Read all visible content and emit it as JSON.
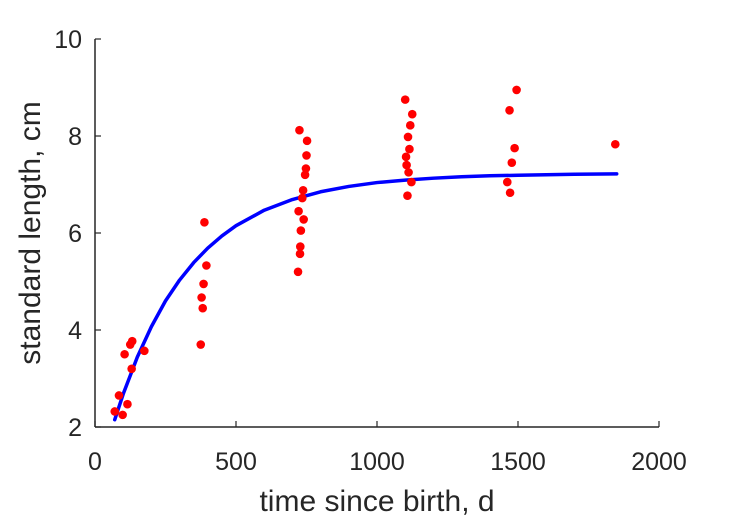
{
  "chart_data": {
    "type": "scatter",
    "title": "",
    "xlabel": "time since birth, d",
    "ylabel": "standard length, cm",
    "xlim": [
      0,
      2000
    ],
    "ylim": [
      2,
      10
    ],
    "xticks": [
      0,
      500,
      1000,
      1500,
      2000
    ],
    "yticks": [
      2,
      4,
      6,
      8,
      10
    ],
    "grid": false,
    "legend": "none",
    "colors": {
      "data": "#ff0000",
      "fit": "#0000ff",
      "axis": "#262626"
    },
    "series": [
      {
        "type": "scatter",
        "points": [
          [
            70,
            2.32
          ],
          [
            85,
            2.65
          ],
          [
            98,
            2.25
          ],
          [
            105,
            3.5
          ],
          [
            115,
            2.47
          ],
          [
            125,
            3.7
          ],
          [
            130,
            3.2
          ],
          [
            132,
            3.77
          ],
          [
            175,
            3.57
          ],
          [
            375,
            3.7
          ],
          [
            378,
            4.67
          ],
          [
            382,
            4.45
          ],
          [
            385,
            4.95
          ],
          [
            388,
            6.22
          ],
          [
            395,
            5.33
          ],
          [
            720,
            5.2
          ],
          [
            722,
            6.45
          ],
          [
            725,
            8.12
          ],
          [
            727,
            5.57
          ],
          [
            728,
            5.72
          ],
          [
            730,
            6.05
          ],
          [
            735,
            6.72
          ],
          [
            738,
            6.88
          ],
          [
            740,
            6.28
          ],
          [
            745,
            7.2
          ],
          [
            748,
            7.33
          ],
          [
            750,
            7.6
          ],
          [
            752,
            7.9
          ],
          [
            1100,
            8.75
          ],
          [
            1103,
            7.57
          ],
          [
            1105,
            7.4
          ],
          [
            1108,
            6.77
          ],
          [
            1110,
            7.98
          ],
          [
            1112,
            7.25
          ],
          [
            1115,
            7.73
          ],
          [
            1118,
            8.22
          ],
          [
            1122,
            7.05
          ],
          [
            1125,
            8.45
          ],
          [
            1462,
            7.05
          ],
          [
            1470,
            8.53
          ],
          [
            1472,
            6.83
          ],
          [
            1478,
            7.45
          ],
          [
            1488,
            7.75
          ],
          [
            1495,
            8.95
          ],
          [
            1845,
            7.83
          ]
        ]
      },
      {
        "type": "line",
        "points": [
          [
            70,
            2.15
          ],
          [
            100,
            2.68
          ],
          [
            150,
            3.44
          ],
          [
            200,
            4.07
          ],
          [
            250,
            4.6
          ],
          [
            300,
            5.03
          ],
          [
            350,
            5.39
          ],
          [
            400,
            5.69
          ],
          [
            450,
            5.94
          ],
          [
            500,
            6.15
          ],
          [
            600,
            6.47
          ],
          [
            700,
            6.69
          ],
          [
            800,
            6.85
          ],
          [
            900,
            6.96
          ],
          [
            1000,
            7.04
          ],
          [
            1100,
            7.09
          ],
          [
            1200,
            7.13
          ],
          [
            1300,
            7.16
          ],
          [
            1400,
            7.18
          ],
          [
            1500,
            7.19
          ],
          [
            1600,
            7.2
          ],
          [
            1700,
            7.21
          ],
          [
            1850,
            7.22
          ]
        ]
      }
    ]
  }
}
